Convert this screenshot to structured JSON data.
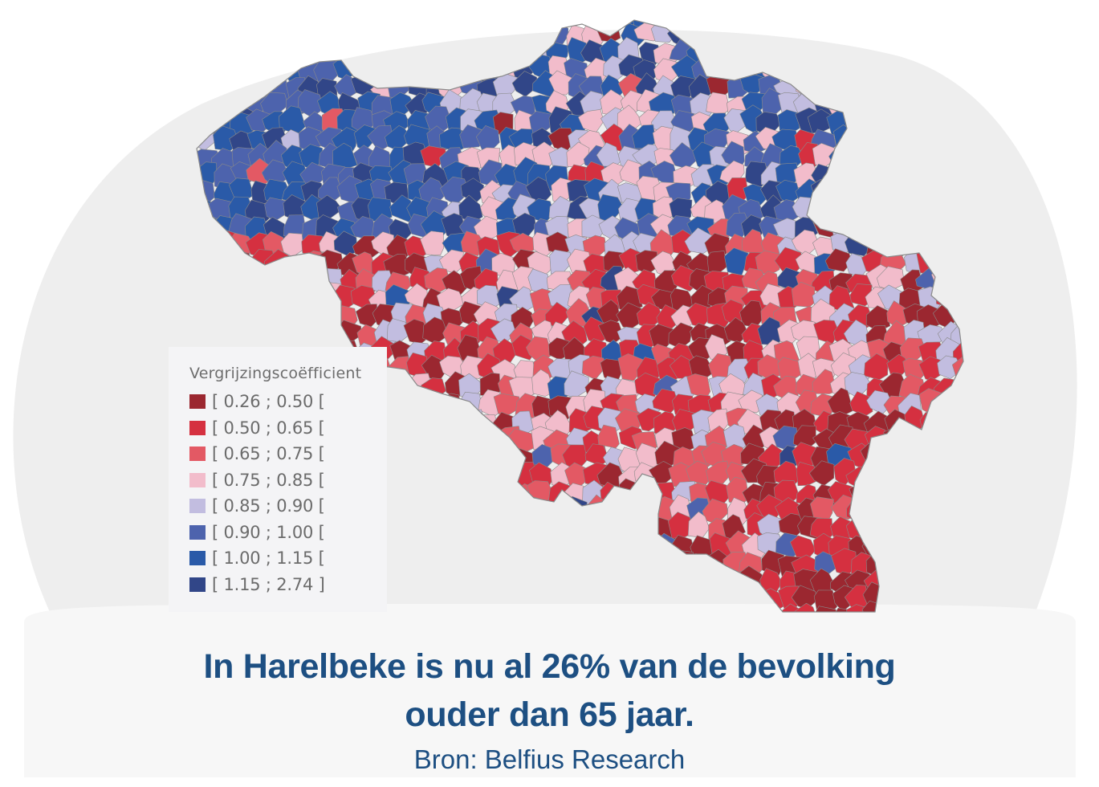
{
  "legend": {
    "title": "Vergrijzingscoëfficient",
    "classes": [
      {
        "label": "[ 0.26 ; 0.50 [",
        "color": "#9b2730"
      },
      {
        "label": "[ 0.50 ; 0.65 [",
        "color": "#d53040"
      },
      {
        "label": "[ 0.65 ; 0.75 [",
        "color": "#e35964"
      },
      {
        "label": "[ 0.75 ; 0.85 [",
        "color": "#f2bccb"
      },
      {
        "label": "[ 0.85 ; 0.90 [",
        "color": "#c2bde0"
      },
      {
        "label": "[ 0.90 ; 1.00 [",
        "color": "#4d63ad"
      },
      {
        "label": "[ 1.00 ; 1.15 [",
        "color": "#2a5aa8"
      },
      {
        "label": "[ 1.15 ; 2.74 ]",
        "color": "#314688"
      }
    ]
  },
  "caption": {
    "headline_line1": "In Harelbeke is nu al 26% van de bevolking",
    "headline_line2": "ouder dan 65 jaar.",
    "source": "Bron: Belfius Research"
  },
  "colors": {
    "headline": "#1d4f82",
    "backdrop": "#eeeeee",
    "municipality_border": "#8a8a8a"
  }
}
